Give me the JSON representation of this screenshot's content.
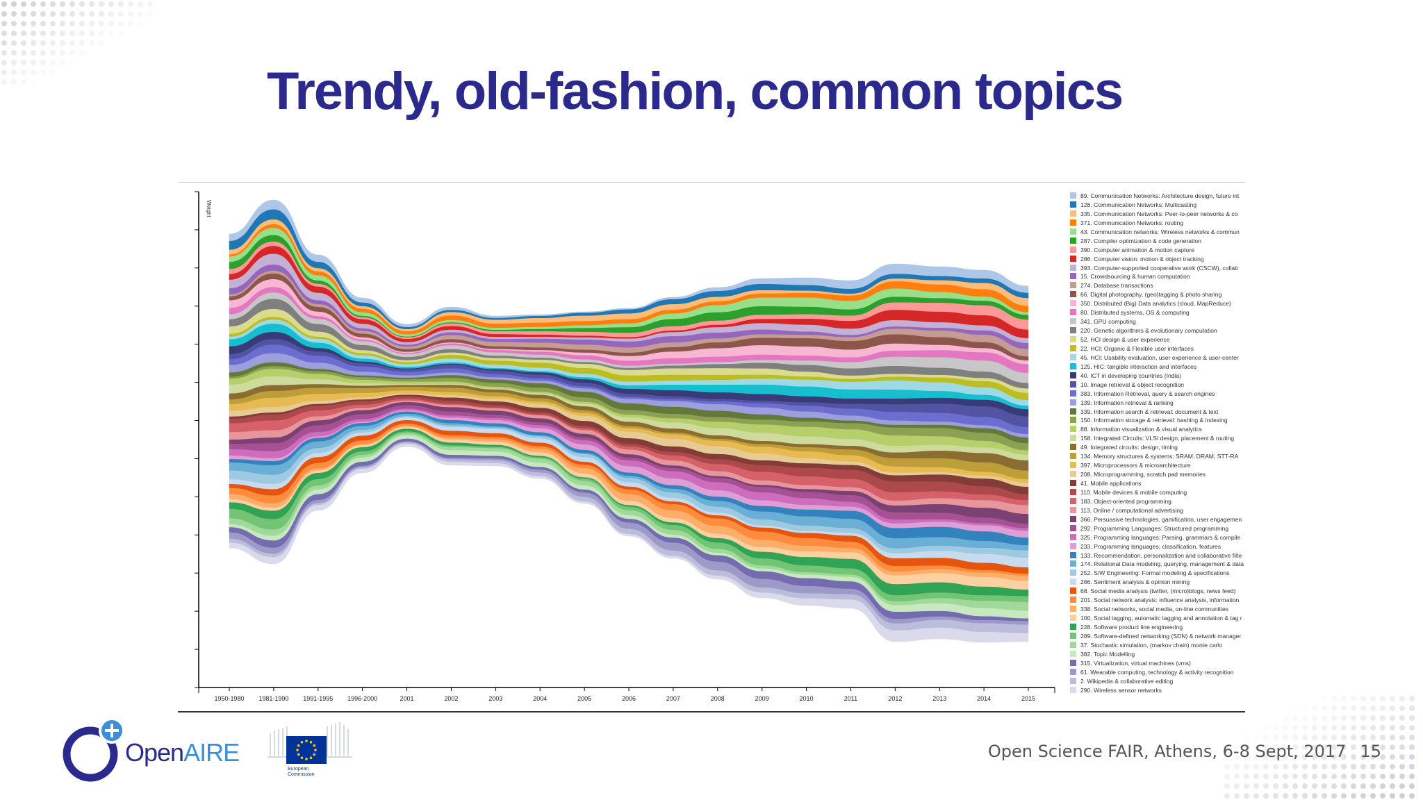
{
  "slide": {
    "title": "Trendy, old-fashion, common topics",
    "footer": "Open Science FAIR, Athens, 6-8 Sept, 2017",
    "page_number": "15"
  },
  "logos": {
    "openaire_prefix": "Open",
    "openaire_suffix": "AIRE",
    "ec_label_line1": "European",
    "ec_label_line2": "Commission"
  },
  "chart_data": {
    "type": "area",
    "stacked": true,
    "ylabel": "Weight",
    "x": [
      "1950-1980",
      "1981-1990",
      "1991-1995",
      "1996-2000",
      "2001",
      "2002",
      "2003",
      "2004",
      "2005",
      "2006",
      "2007",
      "2008",
      "2009",
      "2010",
      "2011",
      "2012",
      "2013",
      "2014",
      "2015"
    ],
    "totals": [
      11.3,
      13.1,
      9.2,
      6.3,
      4.4,
      5.7,
      5.4,
      5.9,
      6.9,
      8.2,
      9.4,
      10.5,
      11.5,
      11.8,
      11.8,
      13.6,
      13.4,
      13.4,
      12.8
    ],
    "legend_position": "right",
    "series": [
      {
        "name": "89. Communication Networks: Architecture design, future int",
        "color": "#aec7e8"
      },
      {
        "name": "128. Communication Networks: Multicasting",
        "color": "#1f77b4"
      },
      {
        "name": "335. Communication Networks: Peer-to-peer networks & co",
        "color": "#ffbb78"
      },
      {
        "name": "371. Communication Networks: routing",
        "color": "#ff7f0e"
      },
      {
        "name": "43. Communication networks: Wireless networks & commun",
        "color": "#98df8a"
      },
      {
        "name": "287. Compiler optimization & code generation",
        "color": "#2ca02c"
      },
      {
        "name": "390. Computer animation & motion capture",
        "color": "#ff9896"
      },
      {
        "name": "286. Computer vision: motion & object tracking",
        "color": "#d62728"
      },
      {
        "name": "393. Computer-supported cooperative work (CSCW), collab",
        "color": "#c5b0d5"
      },
      {
        "name": "15. Crowdsourcing & human computation",
        "color": "#9467bd"
      },
      {
        "name": "274. Database transactions",
        "color": "#c49c94"
      },
      {
        "name": "66. Digital photography, (geo)tagging & photo sharing",
        "color": "#8c564b"
      },
      {
        "name": "350. Distributed (Big) Data analytics (cloud, MapReduce)",
        "color": "#f7b6d2"
      },
      {
        "name": "80. Distributed systems, OS & computing",
        "color": "#e377c2"
      },
      {
        "name": "341. GPU computing",
        "color": "#c7c7c7"
      },
      {
        "name": "220. Genetic algorithms & evolutionary computation",
        "color": "#7f7f7f"
      },
      {
        "name": "52. HCI design & user experience",
        "color": "#dbdb8d"
      },
      {
        "name": "22. HCI: Organic & Flexible user interfaces",
        "color": "#bcbd22"
      },
      {
        "name": "45. HCI: Usability evaluation, user experience & user-center",
        "color": "#9edae5"
      },
      {
        "name": "125. HIC: tangible interaction and interfaces",
        "color": "#17becf"
      },
      {
        "name": "40. ICT in developing countries (India)",
        "color": "#393b79"
      },
      {
        "name": "10. Image retrieval & object recognition",
        "color": "#5254a3"
      },
      {
        "name": "383. Information Retrieval, query & search engines",
        "color": "#6b6ecf"
      },
      {
        "name": "139. Information retrieval & ranking",
        "color": "#9c9ede"
      },
      {
        "name": "339. Information search & retrieval: document & text",
        "color": "#637939"
      },
      {
        "name": "150. Information storage & retrieval: hashing & indexing",
        "color": "#8ca252"
      },
      {
        "name": "88. Information visualization & visual analytics",
        "color": "#b5cf6b"
      },
      {
        "name": "158. Integrated Circuits: VLSI design, placement & routing",
        "color": "#cedb9c"
      },
      {
        "name": "49. Integrated circuits: design, timing",
        "color": "#8c6d31"
      },
      {
        "name": "134. Memory structures & systems: SRAM, DRAM, STT-RA",
        "color": "#bd9e39"
      },
      {
        "name": "397. Microprocessors & microarchitecture",
        "color": "#e7ba52"
      },
      {
        "name": "208. Microprogramming, scratch pad memories",
        "color": "#e7cb94"
      },
      {
        "name": "41. Mobile applications",
        "color": "#843c39"
      },
      {
        "name": "110. Mobile devices & mobile computing",
        "color": "#ad494a"
      },
      {
        "name": "183. Object-oriented programming",
        "color": "#d6616b"
      },
      {
        "name": "113. Online / computational advertising",
        "color": "#e7969c"
      },
      {
        "name": "366. Persuasive technologies, gamification, user engagemen",
        "color": "#7b4173"
      },
      {
        "name": "292. Programming Languages: Structured programming",
        "color": "#a55194"
      },
      {
        "name": "325. Programming languages: Parsing, grammars & compile",
        "color": "#ce6dbd"
      },
      {
        "name": "233. Programming languages: classification, features",
        "color": "#de9ed6"
      },
      {
        "name": "133. Recommendation, personalization and collaborative filte",
        "color": "#3182bd"
      },
      {
        "name": "174. Relational Data modeling, querying, management & data",
        "color": "#6baed6"
      },
      {
        "name": "252. S/W Engineering: Formal modeling & specifications",
        "color": "#9ecae1"
      },
      {
        "name": "266. Sentiment analysis & opinion mining",
        "color": "#c6dbef"
      },
      {
        "name": "68. Social media analysis (twitter, (micro)blogs, news feed)",
        "color": "#e6550d"
      },
      {
        "name": "201. Social network analysis: influence analysis, information",
        "color": "#fd8d3c"
      },
      {
        "name": "338. Social networks, social media, on-line communities",
        "color": "#fdae6b"
      },
      {
        "name": "100. Social tagging, automatic tagging and annotation & tag r",
        "color": "#fdd0a2"
      },
      {
        "name": "228. Software product line engineering",
        "color": "#31a354"
      },
      {
        "name": "289. Software-defined networking (SDN) & network manager",
        "color": "#74c476"
      },
      {
        "name": "37. Stochastic simulation, (markov chain) monte carlo",
        "color": "#a1d99b"
      },
      {
        "name": "382. Topic Modelling",
        "color": "#c7e9c0"
      },
      {
        "name": "315. Virtualization, virtual machines (vms)",
        "color": "#756bb1"
      },
      {
        "name": "61. Wearable computing, technology & activity recognition",
        "color": "#9e9ac8"
      },
      {
        "name": "2. Wikipedia & collaborative editing",
        "color": "#bcbddc"
      },
      {
        "name": "290. Wireless sensor networks",
        "color": "#dadaeb"
      }
    ]
  }
}
